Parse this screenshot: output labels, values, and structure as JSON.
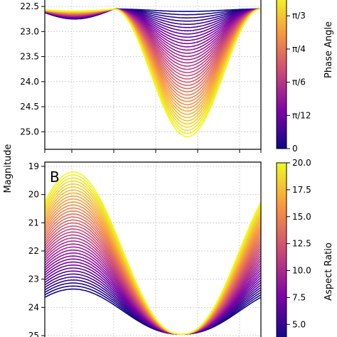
{
  "ylabel": "Magnitude",
  "chart_data": [
    {
      "type": "line",
      "panel_label": "",
      "ylim": [
        25.35,
        22.3
      ],
      "y_inverted": true,
      "y_ticks": [
        "22.5",
        "23.0",
        "23.5",
        "24.0",
        "24.5",
        "25.0"
      ],
      "y_tick_values": [
        22.5,
        23.0,
        23.5,
        24.0,
        24.5,
        25.0
      ],
      "grid": true,
      "n_curves": 40,
      "baseline": 22.55,
      "min_depth": 0.05,
      "max_depth": 2.55,
      "colormap": "plasma",
      "colorbar": {
        "label": "Phase Angle",
        "tick_labels": [
          "0",
          "π/12",
          "π/6",
          "π/4",
          "π/3"
        ],
        "tick_values": [
          0,
          0.2618,
          0.5236,
          0.7854,
          1.0472
        ],
        "range": [
          0,
          1.2
        ]
      }
    },
    {
      "type": "line",
      "panel_label": "B",
      "ylim": [
        25.05,
        18.85
      ],
      "y_inverted": true,
      "y_ticks": [
        "19",
        "20",
        "21",
        "22",
        "23",
        "24",
        "25"
      ],
      "y_tick_values": [
        19,
        20,
        21,
        22,
        23,
        24,
        25
      ],
      "grid": true,
      "n_curves": 40,
      "baseline": 24.95,
      "min_amplitude": 1.6,
      "max_amplitude": 5.75,
      "colormap": "plasma",
      "colorbar": {
        "label": "Aspect Ratio",
        "tick_labels": [
          "5.0",
          "7.5",
          "10.0",
          "12.5",
          "15.0",
          "17.5",
          "20.0"
        ],
        "tick_values": [
          5.0,
          7.5,
          10.0,
          12.5,
          15.0,
          17.5,
          20.0
        ],
        "range": [
          3.5,
          20.0
        ]
      }
    }
  ]
}
